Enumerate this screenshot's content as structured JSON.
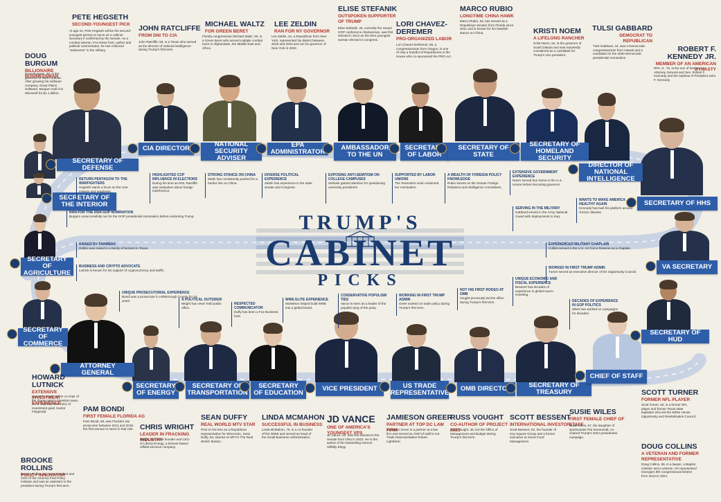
{
  "title": {
    "line1": "TRUMP'S",
    "line2": "CABINET",
    "line3": "PICKS"
  },
  "colors": {
    "navy": "#1b3b6f",
    "pill": "#2f5ea8",
    "accent": "#b0322a",
    "bg": "#f2efe6",
    "road": "#c9d3e3"
  },
  "positions": [
    {
      "id": "defense",
      "label": "SECRETARY OF DEFENSE"
    },
    {
      "id": "cia",
      "label": "CIA DIRECTOR"
    },
    {
      "id": "nsa",
      "label": "NATIONAL SECURITY ADVISER"
    },
    {
      "id": "epa",
      "label": "EPA ADMINISTRATOR"
    },
    {
      "id": "un",
      "label": "AMBASSADOR TO THE UN"
    },
    {
      "id": "labor",
      "label": "SECRETARY OF LABOR"
    },
    {
      "id": "state",
      "label": "SECRETARY OF STATE"
    },
    {
      "id": "dhs",
      "label": "SECRETARY OF HOMELAND SECURITY"
    },
    {
      "id": "dni",
      "label": "DIRECTOR OF NATIONAL INTELLIGENCE"
    },
    {
      "id": "hhs",
      "label": "SECRETARY OF HHS"
    },
    {
      "id": "interior",
      "label": "SECRETARY OF THE INTERIOR"
    },
    {
      "id": "agri",
      "label": "SECRETARY OF AGRICULTURE"
    },
    {
      "id": "commerce",
      "label": "SECRETARY OF COMMERCE"
    },
    {
      "id": "ag",
      "label": "ATTORNEY GENERAL"
    },
    {
      "id": "energy",
      "label": "SECRETARY OF ENERGY"
    },
    {
      "id": "transport",
      "label": "SECRETARY OF TRANSPORTATION"
    },
    {
      "id": "edu",
      "label": "SECRETARY OF EDUCATION"
    },
    {
      "id": "vp",
      "label": "VICE PRESIDENT"
    },
    {
      "id": "ustr",
      "label": "US TRADE REPRESENTATIVE"
    },
    {
      "id": "omb",
      "label": "OMB DIRECTOR"
    },
    {
      "id": "treasury",
      "label": "SECRETARY OF TREASURY"
    },
    {
      "id": "cos",
      "label": "CHIEF OF STAFF"
    },
    {
      "id": "hud",
      "label": "SECRETARY OF HUD"
    },
    {
      "id": "va",
      "label": "VA SECRETARY"
    }
  ],
  "people": [
    {
      "name": "PETE HEGSETH",
      "role": "SECOND-YOUNGEST PICK",
      "bio": "At age 44, Pete Hegseth will be the second-youngest person to serve as a cabinet secretary if confirmed by the Senate. As a combat veteran, Fox News host, author and political commentator, he has criticized \"wokeness\" in the military."
    },
    {
      "name": "DOUG BURGUM",
      "role": "BILLIONAIRE BUSINESSMAN",
      "bio": "Doug Burgum, 68, is the governor of North Dakota. After growing his software company, Great Plains Software, Burgum sold it to Microsoft for $1.1 billion."
    },
    {
      "name": "JOHN RATCLIFFE",
      "role": "FROM DNI TO CIA",
      "bio": "John Ratcliffe, 59, is a Texan who served as the director of national intelligence during Trump's first term."
    },
    {
      "name": "MICHAEL WALTZ",
      "role": "FOR GREEN BERET",
      "bio": "Florida congressman Michael Waltz, 50, is a Green Beret who served multiple combat tours in Afghanistan, the Middle East and Africa."
    },
    {
      "name": "LEE ZELDIN",
      "role": "RAN FOR NY GOVERNOR",
      "bio": "Lee Zeldin, 44, a Republican from New York, represented his district between 2015 and 2023 and ran for governor of New York in 2022."
    },
    {
      "name": "ELISE STEFANIK",
      "role": "OUTSPOKEN SUPPORTER OF TRUMP",
      "bio": "Elise Stefanik, 40, currently the House GOP conference chairwoman, was first elected in 2014 as the then-youngest woman elected to Congress."
    },
    {
      "name": "LORI CHAVEZ-DEREMER",
      "role": "PRO-ORGANIZED LABOR",
      "bio": "Lori Chavez-DeRemer, 56, a congresswoman from Oregon, is one of only a handful of Republicans in the House who co-sponsored the PRO Act."
    },
    {
      "name": "MARCO RUBIO",
      "role": "LONGTIME CHINA HAWK",
      "bio": "Marco Rubio, 53, has served as a Republican senator from Florida since 2011 and is known for his hawkish stance on China."
    },
    {
      "name": "KRISTI NOEM",
      "role": "A LIFELONG RANCHER",
      "bio": "Kristi Noem, 52, is the governor of South Dakota and was reportedly considered as a candidate for Trump's vice president."
    },
    {
      "name": "TULSI GABBARD",
      "role": "DEMOCRAT TO REPUBLICAN",
      "bio": "Tulsi Gabbard, 43, was a Democratic congresswoman from Hawaii and a candidate for the 2020 Democratic presidential nomination."
    },
    {
      "name": "ROBERT F. KENNEDY JR.",
      "role": "MEMBER OF AN AMERICAN DYNASTY",
      "bio": "RFK Jr., 70, is the son of former U.S. Attorney General and Sen. Robert F. Kennedy and the nephew of President John F. Kennedy."
    },
    {
      "name": "HOWARD LUTNICK",
      "role": "EXTENSIVE INVESTMENT EXPERIENCE",
      "bio": "Howard Lutnick, 63, is co-chair of the Trump-Vance transition team. He is chairman and CEO of investment giant Cantor Fitzgerald."
    },
    {
      "name": "BROOKE ROLLINS",
      "role": "POLICY INNOVATOR",
      "bio": "Brooke Rollins, 52, was president and CEO of the America First Policy Institute and was an assistant to the president during Trump's first term."
    },
    {
      "name": "PAM BONDI",
      "role": "FIRST FEMALE FLORIDA AG",
      "bio": "Pam Bondi, 59, was Florida's top prosecutor between 2011 and 2019, the first woman to serve in that role."
    },
    {
      "name": "CHRIS WRIGHT",
      "role": "LEADER IN FRACKING INDUSTRY",
      "bio": "Wright, 59, is the founder and CEO of Liberty Energy, a Denver-based oilfield services company."
    },
    {
      "name": "SEAN DUFFY",
      "role": "REAL WORLD MTV STAR",
      "bio": "Prior to his time as a Republican representative for Wisconsin, Sean Duffy, 53, starred on MTV's The Real World: Boston."
    },
    {
      "name": "LINDA MCMAHON",
      "role": "SUCCESSFUL IN BUSINESS",
      "bio": "Linda McMahon, 76, is a co-founder of the WWE and served as head of the Small Business Administration."
    },
    {
      "name": "JD VANCE",
      "role": "ONE OF AMERICA'S YOUNGEST VPS",
      "bio": "JD Vance, 40, was first elected to the Senate from Ohio in 2022. He is the author of the bestselling memoir Hillbilly Elegy."
    },
    {
      "name": "JAMIESON GREER",
      "role": "PARTNER AT TOP DC LAW FIRM",
      "bio": "Jamieson Greer is a partner at a law firm and served as chief of staff to US Trade Representative Robert Lighthizer."
    },
    {
      "name": "RUSS VOUGHT",
      "role": "CO-AUTHOR OF PROJECT 2025",
      "bio": "Russ Vought, 48, led the Office of Management and Budget during Trump's first term."
    },
    {
      "name": "SCOTT BESSENT",
      "role": "INTERNATIONAL INVESTOR",
      "bio": "Scott Bessent, 62, the founder of Key Square Group and a former executive at Soros Fund Management."
    },
    {
      "name": "SUSIE WILES",
      "role": "FIRST FEMALE CHIEF OF STAFF",
      "bio": "Susie Wiles, 67, the daughter of sportscaster Pat Summerall, co-chaired Trump's 2024 presidential campaign."
    },
    {
      "name": "SCOTT TURNER",
      "role": "FORMER NFL PLAYER",
      "bio": "Scott Turner, 52, is a former NFL player and former Texas state legislator who led the White House Opportunity and Revitalization Council."
    },
    {
      "name": "DOUG COLLINS",
      "role": "A VETERAN AND FORMER REPRESENTATIVE",
      "bio": "Doug Collins, 58, is a lawyer, a Baptist minister and a veteran. He represented Georgia's 9th Congressional District from 2013 to 2021."
    }
  ],
  "callouts": [
    {
      "h": "RETURN PENTAGON TO THE WARFIGHTERS",
      "t": "Hegseth wants a focus on the core mission and readiness."
    },
    {
      "h": "RAN FOR THE 2024 GOP NOMINATION",
      "t": "Burgum unsuccessfully ran for the GOP presidential nomination before endorsing Trump."
    },
    {
      "h": "RAISED BY FARMERS",
      "t": "Rollins was raised in a family of farmers in Texas."
    },
    {
      "h": "BUSINESS AND CRYPTO ADVOCATE",
      "t": "Lutnick is known for his support of cryptocurrency and tariffs."
    },
    {
      "h": "UNIQUE PROSECUTORIAL EXPERIENCE",
      "t": "Bondi was a prosecutor in Hillsborough County for 18 years."
    },
    {
      "h": "HIGHLIGHTED CCP INFLUENCE IN ELECTIONS",
      "t": "During his time as DNI, Ratcliffe was outspoken about foreign interference."
    },
    {
      "h": "STRONG STANCE ON CHINA",
      "t": "Waltz has consistently pushed for a harder line on China."
    },
    {
      "h": "DIVERSE POLITICAL EXPERIENCE",
      "t": "Zeldin has experience in the state senate and Congress."
    },
    {
      "h": "EXPOSING ANTI-SEMITISM ON COLLEGE CAMPUSES",
      "t": "Stefanik gained attention for questioning university presidents."
    },
    {
      "h": "SUPPORTED BY LABOR UNIONS",
      "t": "The Teamsters union endorsed her nomination."
    },
    {
      "h": "A WEALTH OF FOREIGN POLICY KNOWLEDGE",
      "t": "Rubio serves on the Senate Foreign Relations and Intelligence committees."
    },
    {
      "h": "EXTENSIVE GOVERNMENT EXPERIENCE",
      "t": "Noem served four terms in the U.S. House before becoming governor."
    },
    {
      "h": "SERVING IN THE MILITARY",
      "t": "Gabbard served in the Army National Guard with deployments to Iraq."
    },
    {
      "h": "WANTS TO MAKE AMERICA HEALTHY AGAIN",
      "t": "Kennedy has built his platform around chronic disease."
    },
    {
      "h": "EXPERIENCED MILITARY CHAPLAIN",
      "t": "Collins served in the U.S. Air Force Reserve as a chaplain."
    },
    {
      "h": "WORKED IN FIRST TRUMP ADMIN",
      "t": "Turner served as executive director of the Opportunity Council."
    },
    {
      "h": "UNIQUE ECONOMIC AND FISCAL EXPERIENCE",
      "t": "Bessent has decades of experience in global macro investing."
    },
    {
      "h": "DECADES OF EXPERIENCE IN GOP POLITICS",
      "t": "Wiles has worked on campaigns for decades."
    },
    {
      "h": "NOT HIS FIRST RODEO AT OMB",
      "t": "Vought previously led the office during Trump's first term."
    },
    {
      "h": "WORKING IN FIRST TRUMP ADMIN",
      "t": "Greer worked on trade policy during Trump's first term."
    },
    {
      "h": "CONSERVATIVE POPULISM TIES",
      "t": "Vance is seen as a leader of the populist wing of the party."
    },
    {
      "h": "WWE ELITE EXPERIENCE",
      "t": "McMahon helped build WWE into a global brand."
    },
    {
      "h": "RESPECTED COMMUNICATOR",
      "t": "Duffy has been a Fox Business host."
    },
    {
      "h": "A POLITICAL OUTSIDER",
      "t": "Wright has never held public office."
    }
  ]
}
